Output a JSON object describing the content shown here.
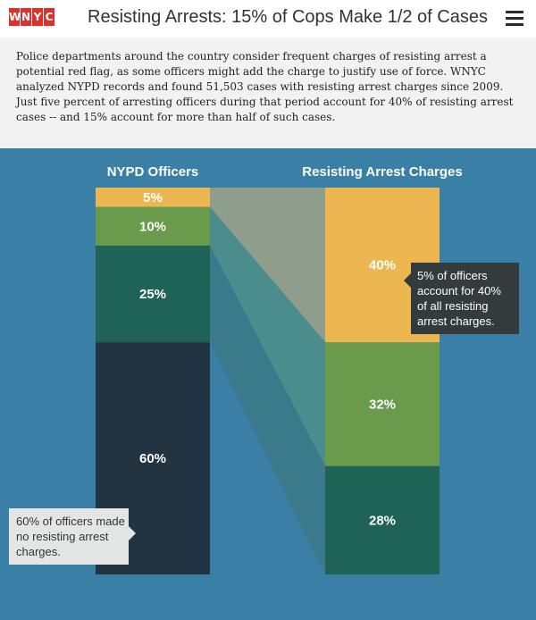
{
  "header": {
    "logo_letters": [
      "W",
      "N",
      "Y",
      "C"
    ],
    "title": "Resisting Arrests: 15% of Cops Make 1/2 of Cases",
    "menu_icon": "hamburger-menu-icon"
  },
  "intro": {
    "text": "Police departments around the country consider frequent charges of resisting arrest a potential red flag, as some officers might add the charge to justify use of force. WNYC analyzed NYPD records and found 51,503 cases with resisting arrest charges since 2009. Just five percent of arresting officers during that period account for 40% of resisting arrest cases -- and 15% account for more than half of such cases."
  },
  "colors": {
    "background": "#3a7fa6",
    "yellow": "#ecb650",
    "green": "#6a9a4c",
    "teal": "#1e6355",
    "navy": "#223341",
    "flow_yellow": "#8f9d8c",
    "flow_green": "#4b8c8c",
    "flow_teal": "#3b7a8a"
  },
  "chart_data": {
    "type": "stacked-bar-flow",
    "columns": [
      {
        "title": "NYPD Officers",
        "segments": [
          {
            "label": "5%",
            "value": 5,
            "color_key": "yellow"
          },
          {
            "label": "10%",
            "value": 10,
            "color_key": "green"
          },
          {
            "label": "25%",
            "value": 25,
            "color_key": "teal"
          },
          {
            "label": "60%",
            "value": 60,
            "color_key": "navy"
          }
        ]
      },
      {
        "title": "Resisting Arrest Charges",
        "segments": [
          {
            "label": "40%",
            "value": 40,
            "color_key": "yellow"
          },
          {
            "label": "32%",
            "value": 32,
            "color_key": "green"
          },
          {
            "label": "28%",
            "value": 28,
            "color_key": "teal"
          }
        ]
      }
    ],
    "flows": [
      {
        "from_index": 0,
        "to_index": 0,
        "color_key": "flow_yellow"
      },
      {
        "from_index": 1,
        "to_index": 1,
        "color_key": "flow_green"
      },
      {
        "from_index": 2,
        "to_index": 2,
        "color_key": "flow_teal"
      }
    ],
    "annotations": [
      {
        "text": "5% of officers account for 40% of all resisting arrest charges."
      },
      {
        "text": "60% of officers made no resisting arrest charges."
      }
    ]
  }
}
